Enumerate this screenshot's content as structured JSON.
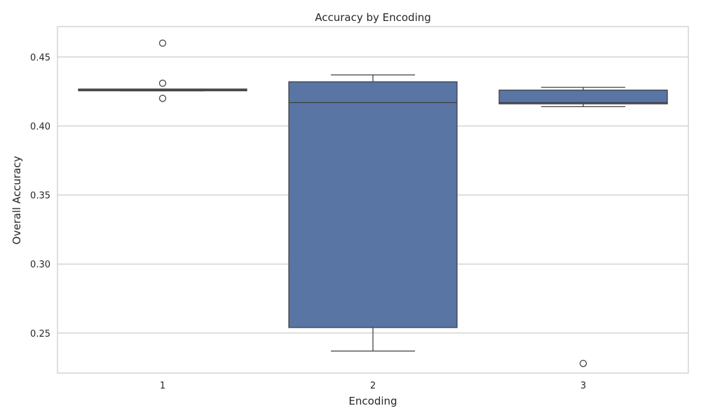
{
  "chart_data": {
    "type": "box",
    "title": "Accuracy by Encoding",
    "xlabel": "Encoding",
    "ylabel": "Overall Accuracy",
    "ylim": [
      0.221,
      0.472
    ],
    "yticks": [
      0.25,
      0.3,
      0.35,
      0.4,
      0.45
    ],
    "ytick_labels": [
      "0.25",
      "0.30",
      "0.35",
      "0.40",
      "0.45"
    ],
    "grid": true,
    "colors": {
      "box_fill": "#5875a4",
      "edge": "#3f3f3f",
      "grid": "#cccccc",
      "frame": "#cccccc"
    },
    "categories": [
      "1",
      "2",
      "3"
    ],
    "boxes": [
      {
        "category": "1",
        "whisker_low": 0.4255,
        "q1": 0.4255,
        "median": 0.426,
        "q3": 0.4268,
        "whisker_high": 0.4268,
        "outliers": [
          0.46,
          0.431,
          0.42
        ]
      },
      {
        "category": "2",
        "whisker_low": 0.237,
        "q1": 0.254,
        "median": 0.417,
        "q3": 0.432,
        "whisker_high": 0.437,
        "outliers": []
      },
      {
        "category": "3",
        "whisker_low": 0.414,
        "q1": 0.416,
        "median": 0.417,
        "q3": 0.426,
        "whisker_high": 0.428,
        "outliers": [
          0.228
        ]
      }
    ]
  }
}
